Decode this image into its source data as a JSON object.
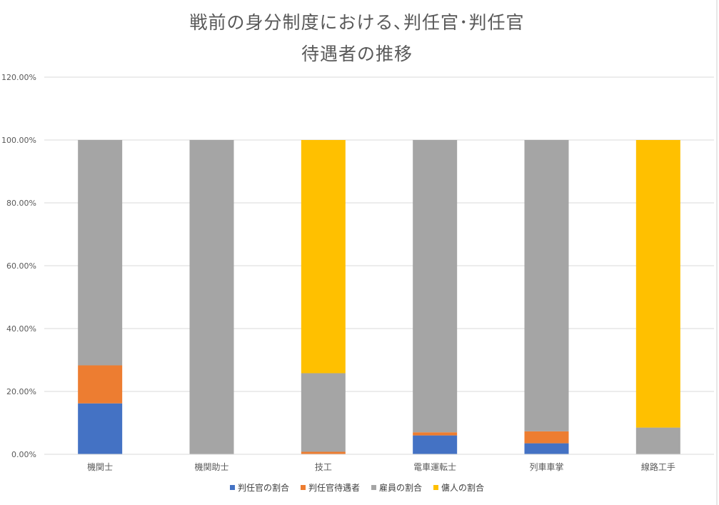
{
  "title_line1": "戦前の身分制度における､判任官･判任官",
  "title_line2": "待遇者の推移",
  "colors": {
    "series": [
      "#4472c4",
      "#ed7d31",
      "#a5a5a5",
      "#ffc000"
    ],
    "gridline": "#d9d9d9",
    "text": "#595959"
  },
  "chart_data": {
    "type": "bar",
    "stacked": true,
    "title": "戦前の身分制度における､判任官･判任官 待遇者の推移",
    "categories": [
      "機関士",
      "機関助士",
      "技工",
      "電車運転士",
      "列車車掌",
      "線路工手"
    ],
    "y_tick_labels": [
      "0.00%",
      "20.00%",
      "40.00%",
      "60.00%",
      "80.00%",
      "100.00%",
      "120.00%"
    ],
    "ylim": [
      0,
      120
    ],
    "y_unit": "%",
    "grid": true,
    "legend_position": "bottom",
    "series": [
      {
        "name": "判任官の割合",
        "values": [
          16.2,
          0,
          0,
          6.0,
          3.5,
          0
        ]
      },
      {
        "name": "判任官待遇者",
        "values": [
          12.1,
          0,
          0.8,
          1.0,
          3.8,
          0
        ]
      },
      {
        "name": "雇員の割合",
        "values": [
          71.7,
          100,
          25.0,
          93.0,
          92.7,
          8.5
        ]
      },
      {
        "name": "傭人の割合",
        "values": [
          0,
          0,
          74.2,
          0,
          0,
          91.5
        ]
      }
    ]
  }
}
